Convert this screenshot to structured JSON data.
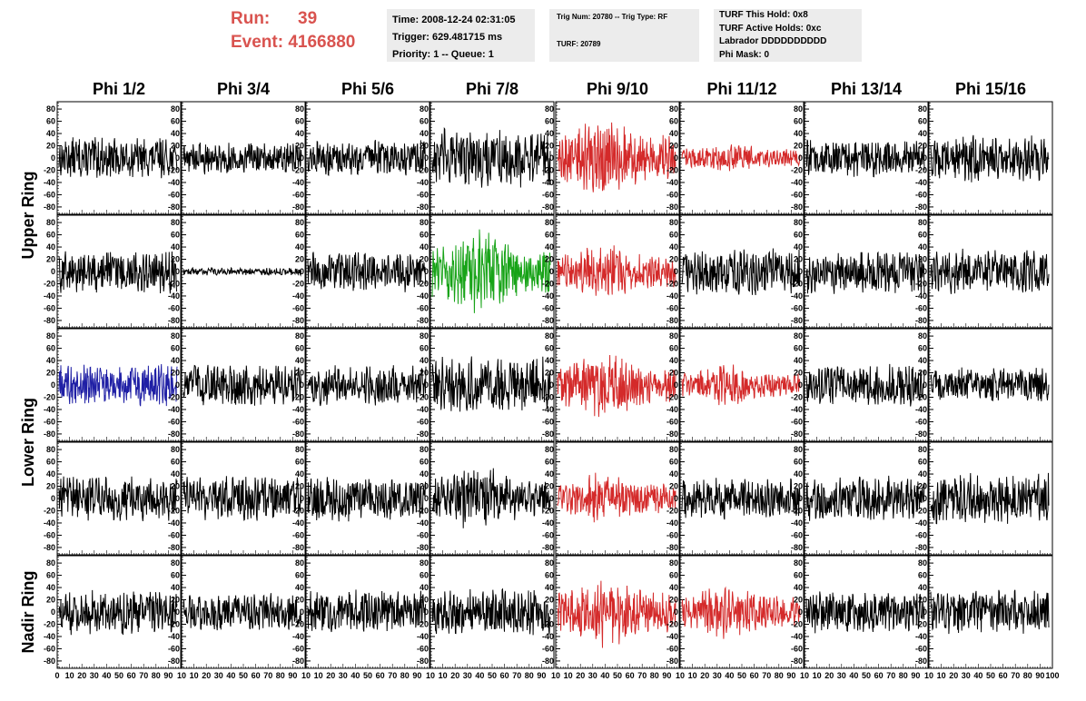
{
  "header": {
    "run_label": "Run:",
    "run_value": "39",
    "event_label": "Event:",
    "event_value": "4166880"
  },
  "info_box_1": {
    "time": "Time: 2008-12-24 02:31:05",
    "trigger": "Trigger: 629.481715 ms",
    "priority": "Priority: 1 -- Queue: 1"
  },
  "info_box_2": {
    "trig": "Trig Num: 20780 -- Trig Type: RF",
    "turf": "TURF: 20789"
  },
  "info_box_3": {
    "hold": "TURF This Hold: 0x8",
    "active": "TURF Active Holds: 0xc",
    "labrador": "Labrador DDDDDDDDDD",
    "phi_mask": "Phi Mask: 0"
  },
  "chart_data": {
    "type": "line",
    "columns": [
      "Phi 1/2",
      "Phi 3/4",
      "Phi 5/6",
      "Phi 7/8",
      "Phi 9/10",
      "Phi 11/12",
      "Phi 13/14",
      "Phi 15/16"
    ],
    "ring_labels": [
      "Upper Ring",
      "Lower Ring",
      "Nadir Ring"
    ],
    "y_ticks": [
      80,
      60,
      40,
      20,
      0,
      -20,
      -40,
      -60,
      -80
    ],
    "x_ticks": [
      0,
      10,
      20,
      30,
      40,
      50,
      60,
      70,
      80,
      90,
      100
    ],
    "xlim": [
      0,
      100
    ],
    "ylim": [
      -92,
      92
    ],
    "colors": {
      "normal": "#000000",
      "red": "#d42a2a",
      "green": "#17a317",
      "blue": "#1f1fa5"
    },
    "panels": [
      {
        "row": 0,
        "col": 0,
        "color": "normal",
        "amplitude": 28
      },
      {
        "row": 0,
        "col": 1,
        "color": "normal",
        "amplitude": 22
      },
      {
        "row": 0,
        "col": 2,
        "color": "normal",
        "amplitude": 24
      },
      {
        "row": 0,
        "col": 3,
        "color": "normal",
        "amplitude": 40
      },
      {
        "row": 0,
        "col": 4,
        "color": "red",
        "amplitude": 55
      },
      {
        "row": 0,
        "col": 5,
        "color": "red",
        "amplitude": 22
      },
      {
        "row": 0,
        "col": 6,
        "color": "normal",
        "amplitude": 26
      },
      {
        "row": 0,
        "col": 7,
        "color": "normal",
        "amplitude": 32
      },
      {
        "row": 1,
        "col": 0,
        "color": "normal",
        "amplitude": 30
      },
      {
        "row": 1,
        "col": 1,
        "color": "normal",
        "amplitude": 5
      },
      {
        "row": 1,
        "col": 2,
        "color": "normal",
        "amplitude": 28
      },
      {
        "row": 1,
        "col": 3,
        "color": "green",
        "amplitude": 58
      },
      {
        "row": 1,
        "col": 4,
        "color": "red",
        "amplitude": 40
      },
      {
        "row": 1,
        "col": 5,
        "color": "normal",
        "amplitude": 32
      },
      {
        "row": 1,
        "col": 6,
        "color": "normal",
        "amplitude": 30
      },
      {
        "row": 1,
        "col": 7,
        "color": "normal",
        "amplitude": 30
      },
      {
        "row": 2,
        "col": 0,
        "color": "blue",
        "amplitude": 28
      },
      {
        "row": 2,
        "col": 1,
        "color": "normal",
        "amplitude": 28
      },
      {
        "row": 2,
        "col": 2,
        "color": "normal",
        "amplitude": 28
      },
      {
        "row": 2,
        "col": 3,
        "color": "normal",
        "amplitude": 38
      },
      {
        "row": 2,
        "col": 4,
        "color": "red",
        "amplitude": 48
      },
      {
        "row": 2,
        "col": 5,
        "color": "red",
        "amplitude": 28
      },
      {
        "row": 2,
        "col": 6,
        "color": "normal",
        "amplitude": 28
      },
      {
        "row": 2,
        "col": 7,
        "color": "normal",
        "amplitude": 24
      },
      {
        "row": 3,
        "col": 0,
        "color": "normal",
        "amplitude": 30
      },
      {
        "row": 3,
        "col": 1,
        "color": "normal",
        "amplitude": 30
      },
      {
        "row": 3,
        "col": 2,
        "color": "normal",
        "amplitude": 30
      },
      {
        "row": 3,
        "col": 3,
        "color": "normal",
        "amplitude": 48
      },
      {
        "row": 3,
        "col": 4,
        "color": "red",
        "amplitude": 36
      },
      {
        "row": 3,
        "col": 5,
        "color": "normal",
        "amplitude": 28
      },
      {
        "row": 3,
        "col": 6,
        "color": "normal",
        "amplitude": 30
      },
      {
        "row": 3,
        "col": 7,
        "color": "normal",
        "amplitude": 34
      },
      {
        "row": 4,
        "col": 0,
        "color": "normal",
        "amplitude": 32
      },
      {
        "row": 4,
        "col": 1,
        "color": "normal",
        "amplitude": 26
      },
      {
        "row": 4,
        "col": 2,
        "color": "normal",
        "amplitude": 30
      },
      {
        "row": 4,
        "col": 3,
        "color": "normal",
        "amplitude": 32
      },
      {
        "row": 4,
        "col": 4,
        "color": "red",
        "amplitude": 50
      },
      {
        "row": 4,
        "col": 5,
        "color": "red",
        "amplitude": 38
      },
      {
        "row": 4,
        "col": 6,
        "color": "normal",
        "amplitude": 28
      },
      {
        "row": 4,
        "col": 7,
        "color": "normal",
        "amplitude": 30
      }
    ]
  }
}
